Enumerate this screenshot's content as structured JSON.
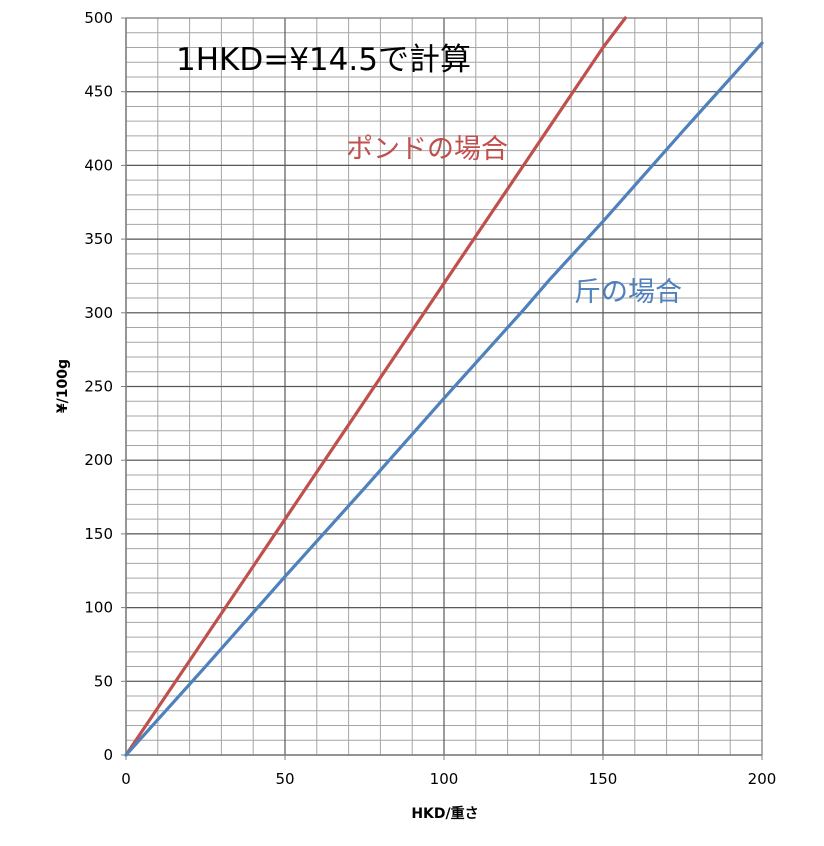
{
  "chart_data": {
    "type": "line",
    "title": "1HKD=¥14.5で計算",
    "xlabel": "HKD/重さ",
    "ylabel": "¥/100g",
    "xlim": [
      0,
      200
    ],
    "ylim": [
      0,
      500
    ],
    "x_ticks": [
      "0",
      "50",
      "100",
      "150",
      "200"
    ],
    "y_ticks": [
      "0",
      "50",
      "100",
      "150",
      "200",
      "250",
      "300",
      "350",
      "400",
      "450",
      "500"
    ],
    "grid": true,
    "grid_minor": {
      "x_step": 10,
      "y_step": 10
    },
    "legend": "none",
    "series": [
      {
        "name": "ポンドの場合",
        "color": "#c0504d",
        "x": [
          0,
          25,
          50,
          75,
          100,
          125,
          150,
          157
        ],
        "y": [
          0,
          80,
          160,
          240,
          320,
          400,
          480,
          500
        ]
      },
      {
        "name": "斤の場合",
        "color": "#4f81bd",
        "x": [
          0,
          25,
          50,
          75,
          100,
          125,
          133,
          150,
          175,
          200
        ],
        "y": [
          0,
          60,
          121,
          181,
          242,
          302,
          322,
          362,
          423,
          483
        ]
      }
    ]
  }
}
